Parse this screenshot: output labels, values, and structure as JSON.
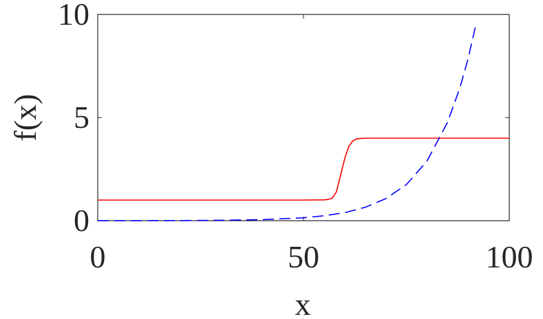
{
  "chart_data": {
    "type": "line",
    "xlabel": "x",
    "ylabel": "f(x)",
    "xlim": [
      0,
      100
    ],
    "xticks": [
      0,
      50,
      100
    ],
    "ylim": [
      0,
      10
    ],
    "yticks": [
      0,
      5,
      10
    ],
    "grid": false,
    "series": [
      {
        "color": "#ff0000",
        "line_style": "solid",
        "x": [
          0,
          50,
          55,
          56,
          57,
          58,
          59,
          60,
          61,
          62,
          63,
          64,
          65,
          70,
          100
        ],
        "values": [
          1,
          1,
          1.01,
          1.03,
          1.1,
          1.4,
          2.2,
          3.0,
          3.6,
          3.88,
          3.97,
          3.99,
          4,
          4,
          4
        ]
      },
      {
        "color": "#0000ff",
        "line_style": "dashed",
        "x": [
          0,
          10,
          20,
          30,
          40,
          50,
          55,
          60,
          65,
          70,
          75,
          80,
          85,
          88,
          90,
          92
        ],
        "values": [
          0.001,
          0.003,
          0.007,
          0.02,
          0.053,
          0.14,
          0.24,
          0.39,
          0.65,
          1.07,
          1.75,
          2.89,
          4.77,
          6.44,
          7.86,
          9.6
        ]
      }
    ]
  }
}
